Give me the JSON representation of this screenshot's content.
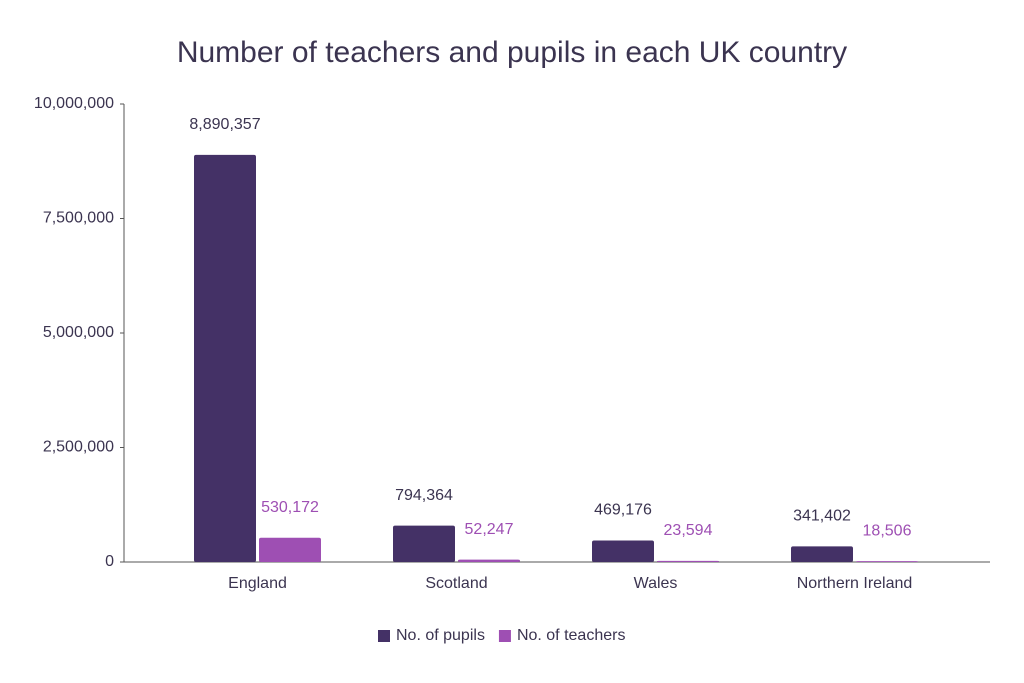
{
  "chart_data": {
    "type": "bar",
    "title": "Number of teachers and pupils in each UK country",
    "categories": [
      "England",
      "Scotland",
      "Wales",
      "Northern Ireland"
    ],
    "series": [
      {
        "name": "No. of pupils",
        "color": "#443166",
        "values": [
          8890357,
          794364,
          469176,
          341402
        ],
        "value_labels": [
          "8,890,357",
          "794,364",
          "469,176",
          "341,402"
        ]
      },
      {
        "name": "No. of teachers",
        "color": "#9e4fb3",
        "values": [
          530172,
          52247,
          23594,
          18506
        ],
        "value_labels": [
          "530,172",
          "52,247",
          "23,594",
          "18,506"
        ]
      }
    ],
    "ylim": [
      0,
      10000000
    ],
    "yticks": [
      0,
      {
        "value": 2500000,
        "label": "2,500,000"
      },
      {
        "value": 5000000,
        "label": "5,000,000"
      },
      {
        "value": 7500000,
        "label": "7,500,000"
      },
      {
        "value": 10000000,
        "label": "10,000,000"
      }
    ],
    "grid": false,
    "legend": "bottom"
  }
}
